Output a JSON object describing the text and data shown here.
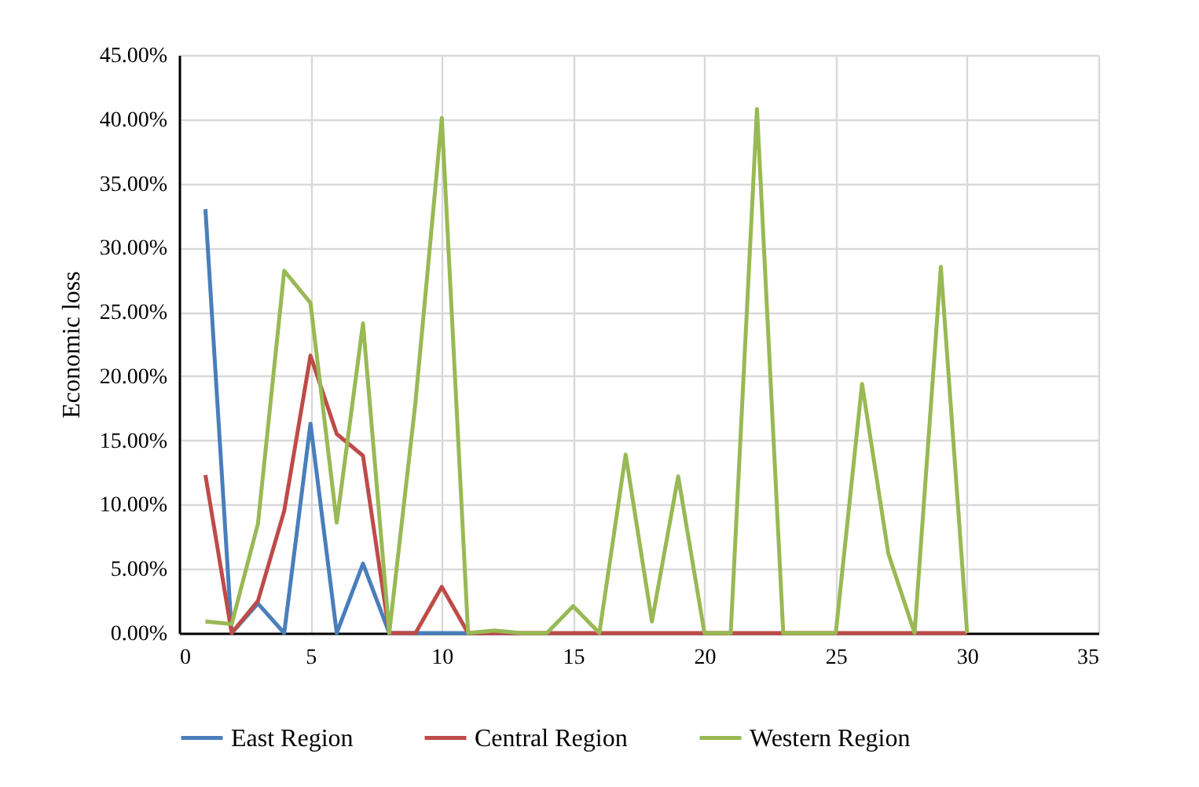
{
  "chart_data": {
    "type": "line",
    "ylabel": "Economic loss",
    "x": [
      1,
      2,
      3,
      4,
      5,
      6,
      7,
      8,
      9,
      10,
      11,
      12,
      13,
      14,
      15,
      16,
      17,
      18,
      19,
      20,
      21,
      22,
      23,
      24,
      25,
      26,
      27,
      28,
      29,
      30
    ],
    "series": [
      {
        "name": "East Region",
        "color": "#4a7ebb",
        "values": [
          33,
          0,
          2.3,
          0,
          16.3,
          0,
          5.4,
          0,
          0,
          0,
          0,
          null,
          null,
          null,
          null,
          null,
          null,
          null,
          null,
          null,
          null,
          null,
          null,
          null,
          null,
          null,
          null,
          null,
          null,
          null
        ]
      },
      {
        "name": "Central Region",
        "color": "#be4b48",
        "values": [
          12.3,
          0,
          2.5,
          9.5,
          21.6,
          15.5,
          13.8,
          0,
          0,
          3.6,
          0,
          0,
          0,
          0,
          0,
          0,
          0,
          0,
          0,
          0,
          0,
          0,
          0,
          0,
          0,
          0,
          0,
          0,
          0,
          0
        ]
      },
      {
        "name": "Western Region",
        "color": "#98b954",
        "values": [
          0.9,
          0.7,
          8.5,
          28.2,
          25.7,
          8.6,
          24.1,
          0,
          18,
          40.1,
          0,
          0.2,
          0,
          0,
          2.1,
          0,
          13.9,
          0.9,
          12.2,
          0,
          0,
          40.8,
          0,
          0,
          0,
          19.4,
          6.2,
          0,
          28.5,
          0
        ]
      }
    ],
    "xlim": [
      0,
      35
    ],
    "xticks": [
      0,
      5,
      10,
      15,
      20,
      25,
      30,
      35
    ],
    "ylim": [
      0,
      45
    ],
    "yticks": [
      {
        "value": 0,
        "label": "0.00%"
      },
      {
        "value": 5,
        "label": "5.00%"
      },
      {
        "value": 10,
        "label": "10.00%"
      },
      {
        "value": 15,
        "label": "15.00%"
      },
      {
        "value": 20,
        "label": "20.00%"
      },
      {
        "value": 25,
        "label": "25.00%"
      },
      {
        "value": 30,
        "label": "30.00%"
      },
      {
        "value": 35,
        "label": "35.00%"
      },
      {
        "value": 40,
        "label": "40.00%"
      },
      {
        "value": 45,
        "label": "45.00%"
      }
    ],
    "grid": true,
    "legend": "bottom",
    "marker": "none",
    "line_style": "solid"
  }
}
